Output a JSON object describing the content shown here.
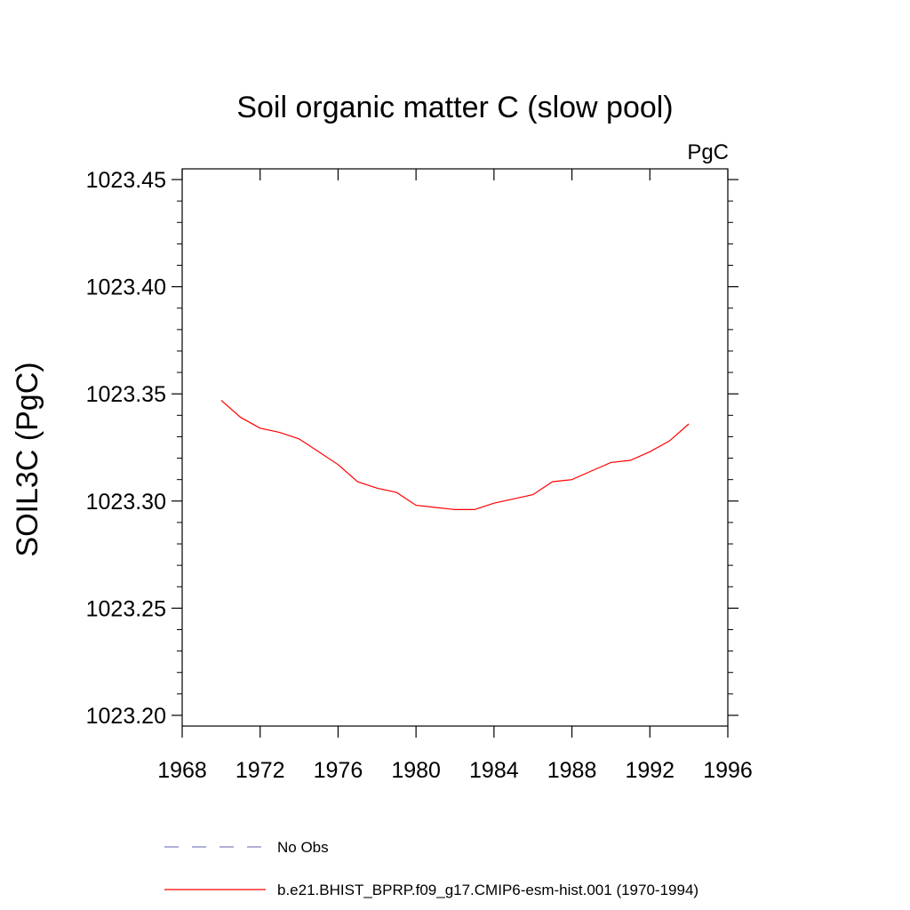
{
  "chart_data": {
    "type": "line",
    "title": "Soil organic matter C (slow pool)",
    "units": "PgC",
    "xlabel": "",
    "ylabel": "SOIL3C  (PgC)",
    "xlim": [
      1968,
      1996
    ],
    "ylim": [
      1023.195,
      1023.455
    ],
    "x_ticks": [
      1968,
      1972,
      1976,
      1980,
      1984,
      1988,
      1992,
      1996
    ],
    "x_tick_labels": [
      "1968",
      "1972",
      "1976",
      "1980",
      "1984",
      "1988",
      "1992",
      "1996"
    ],
    "y_ticks": [
      1023.2,
      1023.25,
      1023.3,
      1023.35,
      1023.4,
      1023.45
    ],
    "y_tick_labels": [
      "1023.20",
      "1023.25",
      "1023.30",
      "1023.35",
      "1023.40",
      "1023.45"
    ],
    "grid": false,
    "legend_position": "bottom",
    "series": [
      {
        "name": "No Obs",
        "color": "#8080c0",
        "dash": "dashed",
        "x": [],
        "values": []
      },
      {
        "name": "b.e21.BHIST_BPRP.f09_g17.CMIP6-esm-hist.001 (1970-1994)",
        "color": "#ff0000",
        "dash": "solid",
        "x": [
          1970,
          1971,
          1972,
          1973,
          1974,
          1975,
          1976,
          1977,
          1978,
          1979,
          1980,
          1981,
          1982,
          1983,
          1984,
          1985,
          1986,
          1987,
          1988,
          1989,
          1990,
          1991,
          1992,
          1993,
          1994
        ],
        "values": [
          1023.347,
          1023.339,
          1023.334,
          1023.332,
          1023.329,
          1023.323,
          1023.317,
          1023.309,
          1023.306,
          1023.304,
          1023.298,
          1023.297,
          1023.296,
          1023.296,
          1023.299,
          1023.301,
          1023.303,
          1023.309,
          1023.31,
          1023.314,
          1023.318,
          1023.319,
          1023.323,
          1023.328,
          1023.336
        ]
      }
    ]
  }
}
